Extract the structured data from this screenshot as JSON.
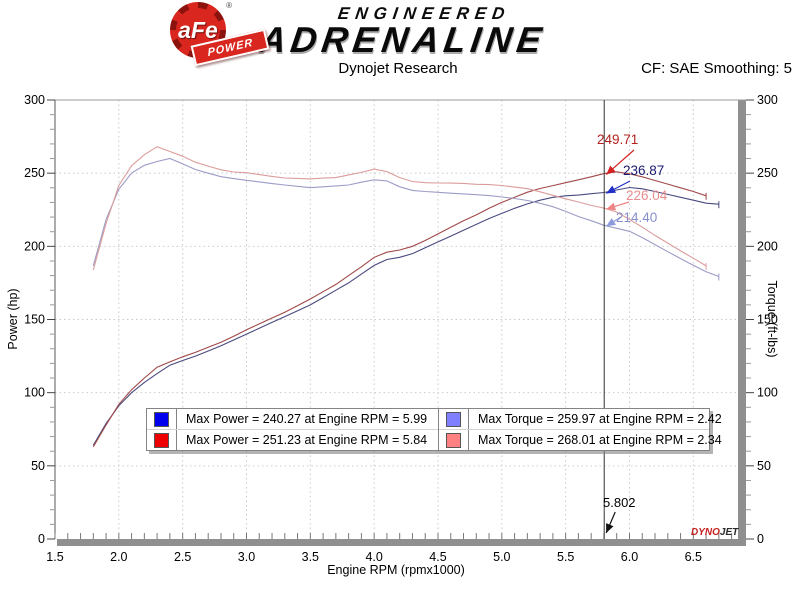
{
  "header": {
    "brand": {
      "circle_text": "aFe",
      "reg_mark": "®",
      "banner_text": "POWER",
      "line1": "ENGINEERED",
      "line2": "ADRENALINE"
    },
    "title": "Dynojet Research",
    "smoothing": "CF: SAE Smoothing: 5"
  },
  "watermark": {
    "part1": "DYNO",
    "part2": "JET"
  },
  "axes": {
    "x": {
      "label": "Engine RPM (rpmx1000)",
      "min": 1.5,
      "max": 6.85,
      "major_ticks": [
        1.5,
        2.0,
        2.5,
        3.0,
        3.5,
        4.0,
        4.5,
        5.0,
        5.5,
        6.0,
        6.5
      ],
      "minor_step": 0.1
    },
    "y_left": {
      "label": "Power (hp)",
      "min": 0,
      "max": 300,
      "major_ticks": [
        0,
        50,
        100,
        150,
        200,
        250,
        300
      ],
      "minor_step": 10
    },
    "y_right": {
      "label": "Torque (ft-lbs)",
      "min": 0,
      "max": 300,
      "major_ticks": [
        0,
        50,
        100,
        150,
        200,
        250,
        300
      ],
      "minor_step": 10
    }
  },
  "cursor": {
    "rpm": 5.802,
    "label": "5.802"
  },
  "callouts": [
    {
      "text": "249.71",
      "value": 249.71,
      "series": "power_red",
      "color": "#b22222",
      "arrow_color": "#d42222"
    },
    {
      "text": "236.87",
      "value": 236.87,
      "series": "power_blue",
      "color": "#1a1a70",
      "arrow_color": "#2230c8"
    },
    {
      "text": "226.04",
      "value": 226.04,
      "series": "torque_salmon",
      "color": "#e88e8e",
      "arrow_color": "#ee8484"
    },
    {
      "text": "214.40",
      "value": 214.4,
      "series": "torque_purple",
      "color": "#8890cc",
      "arrow_color": "#8e9ade"
    }
  ],
  "legend": {
    "items": [
      {
        "swatch": "#0000ee",
        "label": "Max Power = 240.27 at Engine RPM = 5.99"
      },
      {
        "swatch": "#ee0000",
        "label": "Max Power = 251.23 at Engine RPM = 5.84"
      },
      {
        "swatch": "#8080ff",
        "label": "Max Torque = 259.97 at Engine RPM = 2.42"
      },
      {
        "swatch": "#ff8080",
        "label": "Max Torque = 268.01 at Engine RPM = 2.34"
      }
    ]
  },
  "chart_data": {
    "type": "line",
    "title": "Dynojet Research",
    "xlabel": "Engine RPM (rpmx1000)",
    "ylabel_left": "Power (hp)",
    "ylabel_right": "Torque (ft-lbs)",
    "xlim": [
      1.5,
      6.85
    ],
    "ylim_left": [
      0,
      300
    ],
    "ylim_right": [
      0,
      300
    ],
    "grid": true,
    "cursor_rpm": 5.802,
    "cursor_values": {
      "power_red": 249.71,
      "power_blue": 236.87,
      "torque_salmon": 226.04,
      "torque_purple": 214.4
    },
    "maxima": [
      {
        "series": "power_blue",
        "value": 240.27,
        "rpm": 5.99
      },
      {
        "series": "power_red",
        "value": 251.23,
        "rpm": 5.84
      },
      {
        "series": "torque_purple",
        "value": 259.97,
        "rpm": 2.42
      },
      {
        "series": "torque_salmon",
        "value": 268.01,
        "rpm": 2.34
      }
    ],
    "series": [
      {
        "name": "power_blue",
        "axis": "left",
        "color": "#4a4a80",
        "rpm_start": 1.8,
        "rpm_step": 0.1,
        "values": [
          64,
          79,
          91,
          100,
          107,
          113,
          118.8,
          122,
          125,
          128.5,
          132,
          136,
          140,
          144,
          148,
          152,
          156,
          160,
          165,
          170,
          175,
          181,
          187,
          191,
          192.5,
          195,
          199,
          203,
          207,
          211,
          215,
          219,
          222.5,
          226,
          229,
          231.5,
          233.5,
          234.5,
          235,
          236,
          236.8,
          238.5,
          240.2,
          239.3,
          237.5,
          235.5,
          233.5,
          231.5,
          229.5,
          228.8
        ]
      },
      {
        "name": "power_red",
        "axis": "left",
        "color": "#a04848",
        "rpm_start": 1.8,
        "rpm_step": 0.1,
        "values": [
          63,
          78,
          92,
          102,
          110,
          117.4,
          121,
          124.5,
          127.5,
          131,
          134.5,
          138.5,
          143,
          147,
          151,
          155,
          159.5,
          164,
          169,
          174,
          180,
          186,
          192.5,
          196,
          197.5,
          200,
          204,
          208.5,
          213,
          217.5,
          221.5,
          226,
          230,
          233.5,
          237,
          239.5,
          241.5,
          243.5,
          245.5,
          247.5,
          249.7,
          250.9,
          249.5,
          247.5,
          245,
          242.5,
          240,
          237.5,
          234.5
        ]
      },
      {
        "name": "torque_purple",
        "axis": "right",
        "color": "#9c9cc8",
        "rpm_start": 1.8,
        "rpm_step": 0.1,
        "values": [
          186.7,
          218.4,
          239.0,
          250.1,
          255.4,
          258.0,
          260.0,
          256.3,
          252.5,
          250.0,
          247.6,
          246.3,
          245.1,
          244.0,
          242.9,
          241.9,
          241.0,
          240.1,
          240.7,
          241.3,
          241.9,
          243.8,
          245.5,
          244.7,
          240.7,
          238.2,
          237.5,
          236.9,
          236.3,
          235.8,
          235.3,
          234.7,
          233.7,
          232.7,
          231.3,
          229.4,
          227.1,
          223.9,
          220.4,
          217.5,
          214.4,
          212.3,
          210.3,
          206.0,
          201.2,
          196.3,
          191.6,
          187.1,
          182.6,
          179.4
        ]
      },
      {
        "name": "torque_salmon",
        "axis": "right",
        "color": "#dc9c9c",
        "rpm_start": 1.8,
        "rpm_step": 0.1,
        "values": [
          183.8,
          215.6,
          241.6,
          255.1,
          262.6,
          268.1,
          264.8,
          261.5,
          257.5,
          254.8,
          252.3,
          250.8,
          250.3,
          249.0,
          247.8,
          246.7,
          246.4,
          246.1,
          246.6,
          247.0,
          248.8,
          250.5,
          252.8,
          251.1,
          247.0,
          244.3,
          243.5,
          243.3,
          243.2,
          243.0,
          242.4,
          242.2,
          241.6,
          240.5,
          239.4,
          237.3,
          234.9,
          232.5,
          230.3,
          228.0,
          226.1,
          223.4,
          218.4,
          213.1,
          207.5,
          202.2,
          196.9,
          191.9,
          186.6
        ]
      }
    ]
  }
}
